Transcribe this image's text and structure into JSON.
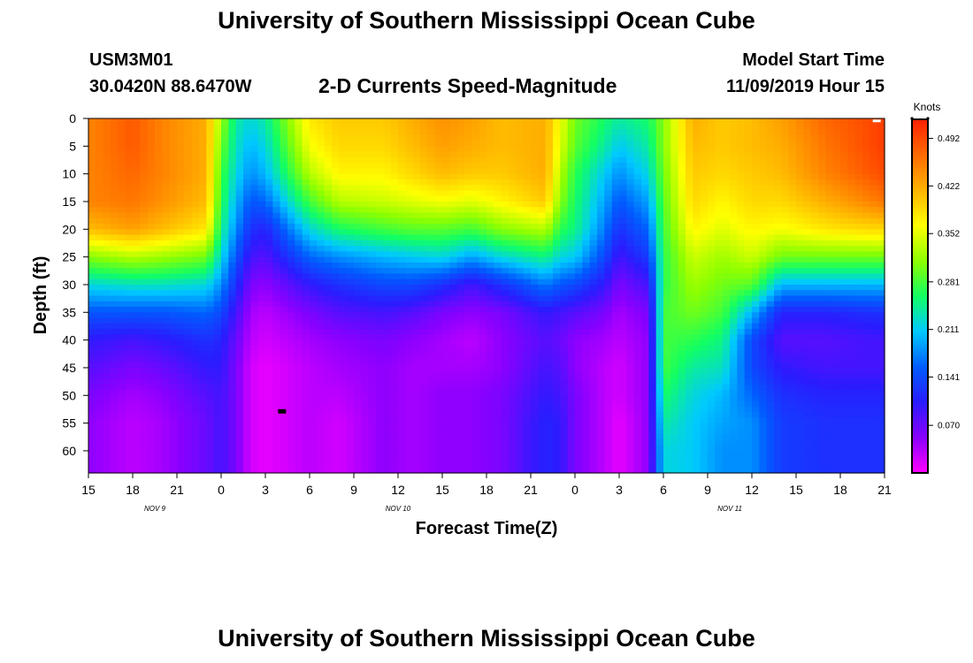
{
  "header": {
    "title": "University of Southern Mississippi Ocean Cube",
    "footer_title": "University of Southern Mississippi Ocean Cube",
    "station_id": "USM3M01",
    "station_coords": "30.0420N 88.6470W",
    "product": "2-D Currents Speed-Magnitude",
    "model_start_label": "Model Start Time",
    "model_start_value": "11/09/2019 Hour 15"
  },
  "colors": {
    "scale": [
      "#ff00ff",
      "#8a00ff",
      "#2a1cff",
      "#005dff",
      "#00c9ff",
      "#12ff63",
      "#8dff00",
      "#ffff00",
      "#ffb300",
      "#ff6a00",
      "#ff2000"
    ]
  },
  "chart_data": {
    "type": "heatmap",
    "xlabel": "Forecast Time(Z)",
    "ylabel": "Depth (ft)",
    "xlim": [
      0,
      54
    ],
    "ylim": [
      0,
      64
    ],
    "x_ticks": [
      0,
      3,
      6,
      9,
      12,
      15,
      18,
      21,
      24,
      27,
      30,
      33,
      36,
      39,
      42,
      45,
      48,
      51,
      54
    ],
    "x_tick_labels": [
      "15",
      "18",
      "21",
      "0",
      "3",
      "6",
      "9",
      "12",
      "15",
      "18",
      "21",
      "0",
      "3",
      "6",
      "9",
      "12",
      "15",
      "18",
      "21"
    ],
    "y_ticks": [
      0,
      5,
      10,
      15,
      20,
      25,
      30,
      35,
      40,
      45,
      50,
      55,
      60
    ],
    "date_labels": [
      {
        "text": "NOV  9",
        "x": 4.5
      },
      {
        "text": "NOV  10",
        "x": 21
      },
      {
        "text": "NOV  11",
        "x": 43.5
      }
    ],
    "colorbar": {
      "title": "Knots",
      "min": 0,
      "max": 0.52,
      "tick_values": [
        0.492,
        0.422,
        0.352,
        0.281,
        0.211,
        0.141,
        0.07
      ],
      "tick_labels": [
        "0.492",
        "0.422",
        "0.352",
        "0.281",
        "0.211",
        "0.141",
        "0.070"
      ]
    },
    "speed_field": {
      "units": "knots",
      "times_hours": [
        0,
        3,
        5,
        8,
        9,
        10,
        11,
        12,
        15,
        17,
        20,
        22,
        24,
        26,
        28,
        31,
        32,
        33,
        35,
        36,
        38,
        39,
        41,
        43,
        45,
        47,
        50,
        53,
        54
      ],
      "depths_ft": [
        0,
        5,
        10,
        15,
        20,
        25,
        30,
        35,
        40,
        45,
        50,
        55,
        60,
        64
      ],
      "values": [
        [
          0.45,
          0.45,
          0.45,
          0.45,
          0.41,
          0.31,
          0.22,
          0.15,
          0.1,
          0.08,
          0.06,
          0.05,
          0.05,
          0.05
        ],
        [
          0.48,
          0.48,
          0.47,
          0.46,
          0.43,
          0.33,
          0.23,
          0.15,
          0.09,
          0.06,
          0.04,
          0.03,
          0.03,
          0.03
        ],
        [
          0.45,
          0.45,
          0.45,
          0.44,
          0.41,
          0.32,
          0.23,
          0.15,
          0.1,
          0.07,
          0.05,
          0.04,
          0.04,
          0.04
        ],
        [
          0.42,
          0.42,
          0.42,
          0.41,
          0.38,
          0.3,
          0.22,
          0.16,
          0.12,
          0.1,
          0.08,
          0.07,
          0.07,
          0.07
        ],
        [
          0.32,
          0.3,
          0.28,
          0.27,
          0.25,
          0.22,
          0.18,
          0.14,
          0.11,
          0.1,
          0.09,
          0.09,
          0.09,
          0.09
        ],
        [
          0.24,
          0.23,
          0.22,
          0.2,
          0.18,
          0.15,
          0.12,
          0.09,
          0.07,
          0.06,
          0.06,
          0.06,
          0.06,
          0.06
        ],
        [
          0.22,
          0.2,
          0.18,
          0.15,
          0.12,
          0.09,
          0.06,
          0.04,
          0.03,
          0.02,
          0.02,
          0.02,
          0.02,
          0.02
        ],
        [
          0.24,
          0.22,
          0.2,
          0.16,
          0.11,
          0.08,
          0.05,
          0.03,
          0.02,
          0.01,
          0.01,
          0.01,
          0.01,
          0.01
        ],
        [
          0.38,
          0.36,
          0.33,
          0.28,
          0.22,
          0.16,
          0.1,
          0.06,
          0.04,
          0.03,
          0.03,
          0.03,
          0.03,
          0.03
        ],
        [
          0.4,
          0.39,
          0.37,
          0.33,
          0.26,
          0.18,
          0.12,
          0.08,
          0.05,
          0.04,
          0.03,
          0.02,
          0.02,
          0.02
        ],
        [
          0.4,
          0.39,
          0.37,
          0.34,
          0.28,
          0.2,
          0.14,
          0.09,
          0.06,
          0.05,
          0.05,
          0.05,
          0.05,
          0.05
        ],
        [
          0.42,
          0.41,
          0.39,
          0.35,
          0.29,
          0.21,
          0.14,
          0.08,
          0.05,
          0.04,
          0.04,
          0.04,
          0.04,
          0.04
        ],
        [
          0.44,
          0.43,
          0.41,
          0.36,
          0.29,
          0.22,
          0.12,
          0.06,
          0.04,
          0.04,
          0.05,
          0.05,
          0.05,
          0.05
        ],
        [
          0.43,
          0.42,
          0.4,
          0.35,
          0.28,
          0.19,
          0.09,
          0.05,
          0.03,
          0.04,
          0.05,
          0.05,
          0.05,
          0.05
        ],
        [
          0.41,
          0.41,
          0.4,
          0.37,
          0.31,
          0.22,
          0.12,
          0.06,
          0.05,
          0.05,
          0.06,
          0.06,
          0.06,
          0.06
        ],
        [
          0.42,
          0.42,
          0.42,
          0.4,
          0.33,
          0.25,
          0.17,
          0.1,
          0.08,
          0.09,
          0.1,
          0.11,
          0.11,
          0.11
        ],
        [
          0.36,
          0.35,
          0.33,
          0.31,
          0.27,
          0.22,
          0.15,
          0.09,
          0.07,
          0.08,
          0.09,
          0.1,
          0.1,
          0.1
        ],
        [
          0.3,
          0.29,
          0.27,
          0.26,
          0.25,
          0.21,
          0.14,
          0.08,
          0.05,
          0.05,
          0.06,
          0.06,
          0.06,
          0.06
        ],
        [
          0.26,
          0.24,
          0.21,
          0.19,
          0.17,
          0.14,
          0.1,
          0.06,
          0.04,
          0.03,
          0.03,
          0.03,
          0.03,
          0.03
        ],
        [
          0.24,
          0.21,
          0.18,
          0.15,
          0.12,
          0.09,
          0.06,
          0.04,
          0.03,
          0.02,
          0.02,
          0.01,
          0.01,
          0.01
        ],
        [
          0.26,
          0.24,
          0.22,
          0.19,
          0.16,
          0.13,
          0.09,
          0.06,
          0.05,
          0.05,
          0.05,
          0.05,
          0.05,
          0.05
        ],
        [
          0.31,
          0.31,
          0.3,
          0.29,
          0.28,
          0.27,
          0.27,
          0.28,
          0.28,
          0.28,
          0.26,
          0.24,
          0.22,
          0.22
        ],
        [
          0.42,
          0.41,
          0.4,
          0.39,
          0.37,
          0.34,
          0.32,
          0.3,
          0.27,
          0.24,
          0.22,
          0.21,
          0.21,
          0.21
        ],
        [
          0.4,
          0.4,
          0.39,
          0.37,
          0.35,
          0.32,
          0.3,
          0.28,
          0.25,
          0.23,
          0.2,
          0.19,
          0.18,
          0.18
        ],
        [
          0.41,
          0.41,
          0.4,
          0.39,
          0.37,
          0.34,
          0.29,
          0.2,
          0.14,
          0.14,
          0.16,
          0.18,
          0.18,
          0.18
        ],
        [
          0.43,
          0.42,
          0.41,
          0.39,
          0.36,
          0.3,
          0.2,
          0.11,
          0.08,
          0.1,
          0.12,
          0.13,
          0.13,
          0.13
        ],
        [
          0.47,
          0.46,
          0.45,
          0.42,
          0.38,
          0.3,
          0.2,
          0.11,
          0.08,
          0.09,
          0.11,
          0.12,
          0.12,
          0.12
        ],
        [
          0.49,
          0.49,
          0.48,
          0.45,
          0.39,
          0.3,
          0.2,
          0.12,
          0.09,
          0.09,
          0.11,
          0.12,
          0.12,
          0.12
        ],
        [
          0.5,
          0.5,
          0.49,
          0.46,
          0.39,
          0.3,
          0.2,
          0.12,
          0.09,
          0.09,
          0.11,
          0.12,
          0.12,
          0.12
        ]
      ]
    },
    "markers": [
      {
        "label": "black marker",
        "time": 13.1,
        "depth": 52.8
      },
      {
        "label": "white marker",
        "time": 53.5,
        "depth": 0.2
      }
    ]
  }
}
